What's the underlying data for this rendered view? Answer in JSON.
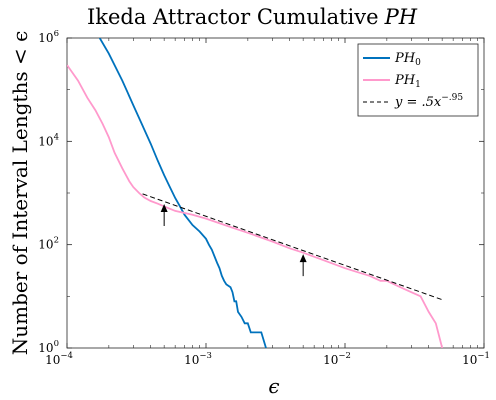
{
  "chart_data": {
    "type": "line",
    "title": "Ikeda Attractor Cumulative",
    "title_math": "PH",
    "xlabel": "ϵ",
    "ylabel": "Number of Interval Lengths < ϵ",
    "xscale": "log",
    "yscale": "log",
    "xlim": [
      0.0001,
      0.1
    ],
    "ylim": [
      1,
      1000000
    ],
    "grid": false,
    "legend_position": "top-right",
    "x_ticks": [
      {
        "value": 0.0001,
        "base": "10",
        "exp": "−4"
      },
      {
        "value": 0.001,
        "base": "10",
        "exp": "−3"
      },
      {
        "value": 0.01,
        "base": "10",
        "exp": "−2"
      },
      {
        "value": 0.1,
        "base": "10",
        "exp": "−1"
      }
    ],
    "y_ticks": [
      {
        "value": 1,
        "base": "10",
        "exp": "0"
      },
      {
        "value": 100,
        "base": "10",
        "exp": "2"
      },
      {
        "value": 10000,
        "base": "10",
        "exp": "4"
      },
      {
        "value": 1000000,
        "base": "10",
        "exp": "6"
      }
    ],
    "series": [
      {
        "name": "PH",
        "name_sub": "0",
        "color": "#0072BD",
        "style": "solid",
        "x": [
          0.000172,
          0.0002,
          0.00025,
          0.0003,
          0.00035,
          0.0004,
          0.00045,
          0.0005,
          0.00055,
          0.0006,
          0.00065,
          0.0007,
          0.0008,
          0.0009,
          0.001,
          0.00105,
          0.0011,
          0.00115,
          0.0012,
          0.00125,
          0.0013,
          0.00135,
          0.0014,
          0.0015,
          0.00155,
          0.0016,
          0.00165,
          0.0017,
          0.0018,
          0.0019,
          0.002,
          0.0021,
          0.0022,
          0.0025,
          0.0027
        ],
        "y": [
          1000000,
          500000,
          150000,
          50000,
          20000,
          9000,
          4200,
          2200,
          1300,
          800,
          550,
          380,
          240,
          180,
          130,
          100,
          80,
          60,
          45,
          35,
          25,
          20,
          17,
          15,
          12,
          8,
          8,
          5,
          4,
          3,
          3,
          2,
          2,
          2,
          1
        ]
      },
      {
        "name": "PH",
        "name_sub": "1",
        "color": "#FF99CC",
        "style": "solid",
        "x": [
          0.0001,
          0.00012,
          0.00014,
          0.00016,
          0.00018,
          0.0002,
          0.00022,
          0.00025,
          0.00028,
          0.0003,
          0.00033,
          0.00036,
          0.0004,
          0.00045,
          0.0005,
          0.0006,
          0.0008,
          0.001,
          0.0015,
          0.002,
          0.003,
          0.004,
          0.005,
          0.007,
          0.01,
          0.012,
          0.015,
          0.018,
          0.02,
          0.025,
          0.03,
          0.035,
          0.04,
          0.045,
          0.05
        ],
        "y": [
          300000,
          150000,
          70000,
          40000,
          22000,
          12000,
          6000,
          3000,
          1700,
          1300,
          1000,
          820,
          700,
          620,
          550,
          450,
          380,
          320,
          220,
          170,
          115,
          85,
          70,
          50,
          35,
          30,
          25,
          20,
          20,
          15,
          12,
          10,
          5,
          3,
          1
        ]
      },
      {
        "name": "y = .5x",
        "name_exp": "−.95",
        "color": "#000000",
        "style": "dashed",
        "coefficient": 0.5,
        "exponent": -0.95,
        "x_range": [
          0.00035,
          0.05
        ]
      }
    ],
    "annotations": [
      {
        "type": "arrow",
        "x": 0.0005,
        "y": 700
      },
      {
        "type": "arrow",
        "x": 0.005,
        "y": 75
      }
    ]
  }
}
